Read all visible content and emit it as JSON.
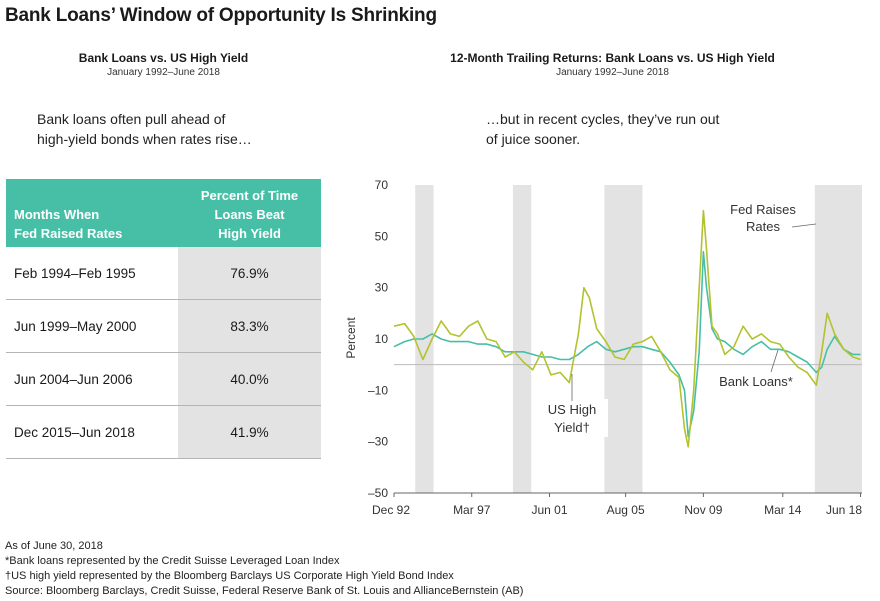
{
  "title": "Bank Loans’ Window of Opportunity Is Shrinking",
  "left_panel": {
    "title": "Bank Loans vs. US High Yield",
    "subtitle": "January 1992–June 2018",
    "caption_line1": "Bank loans often pull ahead of",
    "caption_line2": "high-yield bonds when rates rise…",
    "table": {
      "header_col1_line1": "Months When",
      "header_col1_line2": "Fed Raised Rates",
      "header_col2_line1": "Percent of Time",
      "header_col2_line2": "Loans Beat",
      "header_col2_line3": "High Yield",
      "rows": [
        {
          "period": "Feb 1994–Feb 1995",
          "percent": "76.9%"
        },
        {
          "period": "Jun 1999–May 2000",
          "percent": "83.3%"
        },
        {
          "period": "Jun 2004–Jun 2006",
          "percent": "40.0%"
        },
        {
          "period": "Dec 2015–Jun 2018",
          "percent": "41.9%"
        }
      ]
    }
  },
  "right_panel": {
    "title": "12-Month Trailing Returns: Bank Loans vs. US High Yield",
    "subtitle": "January 1992–June 2018",
    "caption_line1": "…but in recent cycles, they’ve run out",
    "caption_line2": "of juice sooner."
  },
  "chart_data": {
    "type": "line",
    "title": "12-Month Trailing Returns: Bank Loans vs. US High Yield",
    "ylabel": "Percent",
    "ylim": [
      -50,
      70
    ],
    "yticks": [
      70,
      50,
      30,
      10,
      -10,
      -30,
      -50
    ],
    "ytick_labels": [
      "70",
      "50",
      "30",
      "10",
      "–10",
      "–30",
      "–50"
    ],
    "xlim": [
      1992.92,
      2018.5
    ],
    "xticks": [
      1992.92,
      1997.17,
      2001.42,
      2005.58,
      2009.83,
      2014.17,
      2018.42
    ],
    "xtick_labels": [
      "Dec 92",
      "Mar 97",
      "Jun 01",
      "Aug 05",
      "Nov 09",
      "Mar 14",
      "Jun 18"
    ],
    "shaded_periods": [
      [
        1994.08,
        1995.08
      ],
      [
        1999.42,
        2000.42
      ],
      [
        2004.42,
        2006.5
      ],
      [
        2015.92,
        2018.5
      ]
    ],
    "shaded_label_line1": "Fed Raises",
    "shaded_label_line2": "Rates",
    "series": [
      {
        "name": "Bank Loans*",
        "label_line1": "Bank Loans*",
        "color": "#47bfa7",
        "x": [
          1992.92,
          1993.5,
          1994.0,
          1994.5,
          1995.0,
          1995.5,
          1996.0,
          1996.5,
          1997.0,
          1997.5,
          1998.0,
          1998.5,
          1999.0,
          1999.5,
          2000.0,
          2000.5,
          2001.0,
          2001.5,
          2002.0,
          2002.5,
          2003.0,
          2003.5,
          2004.0,
          2004.5,
          2005.0,
          2005.5,
          2006.0,
          2006.5,
          2007.0,
          2007.5,
          2008.0,
          2008.5,
          2008.8,
          2009.0,
          2009.3,
          2009.6,
          2009.83,
          2010.0,
          2010.3,
          2010.6,
          2011.0,
          2011.5,
          2012.0,
          2012.5,
          2013.0,
          2013.5,
          2014.0,
          2014.5,
          2015.0,
          2015.5,
          2016.0,
          2016.3,
          2016.6,
          2017.0,
          2017.5,
          2018.0,
          2018.42
        ],
        "y": [
          7,
          9,
          10,
          10,
          12,
          10,
          9,
          9,
          9,
          8,
          8,
          7,
          5,
          5,
          5,
          4,
          3,
          3,
          2,
          2,
          4,
          7,
          9,
          6,
          5,
          6,
          7,
          7,
          6,
          5,
          1,
          -4,
          -10,
          -28,
          -18,
          5,
          44,
          30,
          14,
          10,
          9,
          6,
          4,
          7,
          9,
          6,
          6,
          5,
          3,
          1,
          -3,
          -1,
          6,
          11,
          6,
          4,
          4
        ]
      },
      {
        "name": "US High Yield†",
        "label_line1": "US High",
        "label_line2": "Yield†",
        "color": "#b3c22e",
        "x": [
          1992.92,
          1993.5,
          1994.0,
          1994.5,
          1995.0,
          1995.5,
          1996.0,
          1996.5,
          1997.0,
          1997.5,
          1998.0,
          1998.5,
          1999.0,
          1999.5,
          2000.0,
          2000.5,
          2001.0,
          2001.5,
          2002.0,
          2002.5,
          2003.0,
          2003.3,
          2003.6,
          2004.0,
          2004.5,
          2005.0,
          2005.5,
          2006.0,
          2006.5,
          2007.0,
          2007.5,
          2008.0,
          2008.5,
          2008.8,
          2009.0,
          2009.3,
          2009.6,
          2009.83,
          2010.0,
          2010.3,
          2010.6,
          2011.0,
          2011.5,
          2012.0,
          2012.5,
          2013.0,
          2013.5,
          2014.0,
          2014.5,
          2015.0,
          2015.5,
          2016.0,
          2016.3,
          2016.6,
          2017.0,
          2017.5,
          2018.0,
          2018.42
        ],
        "y": [
          15,
          16,
          11,
          2,
          10,
          17,
          12,
          11,
          15,
          17,
          10,
          9,
          3,
          5,
          1,
          -2,
          5,
          -4,
          -3,
          -7,
          12,
          30,
          26,
          14,
          9,
          3,
          2,
          8,
          9,
          11,
          5,
          -2,
          -5,
          -25,
          -32,
          -10,
          30,
          60,
          45,
          15,
          12,
          4,
          7,
          15,
          10,
          12,
          9,
          8,
          3,
          -1,
          -3,
          -8,
          5,
          20,
          12,
          6,
          3,
          2
        ]
      }
    ]
  },
  "footnotes": [
    "As of June 30, 2018",
    "*Bank loans represented by the Credit Suisse Leveraged Loan Index",
    "†US high yield represented by the Bloomberg Barclays US Corporate High Yield Bond Index",
    "Source: Bloomberg Barclays, Credit Suisse, Federal Reserve Bank of St. Louis and AllianceBernstein (AB)"
  ]
}
